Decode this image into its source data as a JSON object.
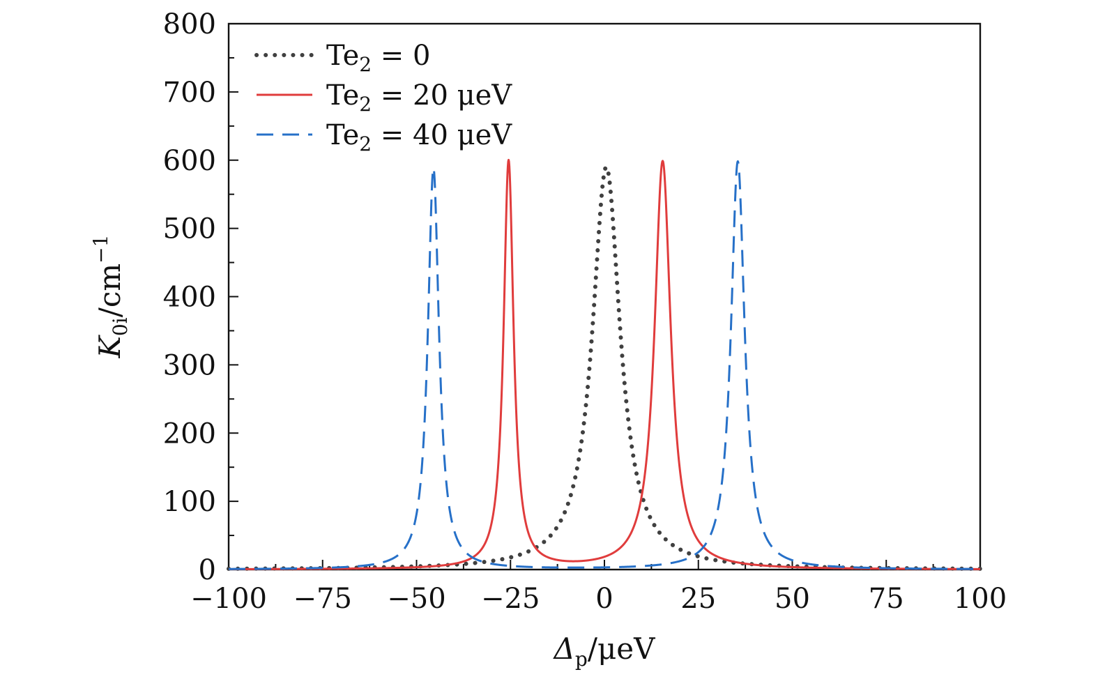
{
  "chart_data": {
    "type": "line",
    "title": "",
    "xlabel": "Δp/μeV",
    "xlabel_parts": {
      "symbol": "Δ",
      "subscript": "p",
      "unit": "/μeV"
    },
    "ylabel": "K0i/cm−1",
    "ylabel_parts": {
      "symbol": "K",
      "subscript": "0i",
      "unit": "/cm",
      "superscript": "−1"
    },
    "xlim": [
      -100,
      100
    ],
    "ylim": [
      0,
      800
    ],
    "x_ticks": [
      -100,
      -75,
      -50,
      -25,
      0,
      25,
      50,
      75,
      100
    ],
    "x_tick_labels": [
      "−100",
      "−75",
      "−50",
      "−25",
      "0",
      "25",
      "50",
      "75",
      "100"
    ],
    "y_ticks": [
      0,
      100,
      200,
      300,
      400,
      500,
      600,
      700,
      800
    ],
    "y_tick_labels": [
      "0",
      "100",
      "200",
      "300",
      "400",
      "500",
      "600",
      "700",
      "800"
    ],
    "grid": false,
    "legend_position": "top-left",
    "series": [
      {
        "name": "Te2 = 0",
        "legend": {
          "base": "Te",
          "sub": "2",
          "rest": " = 0"
        },
        "color": "#404040",
        "style": "dotted",
        "peaks": [
          {
            "center": 0.5,
            "height": 590,
            "hwhm": 4.5
          }
        ]
      },
      {
        "name": "Te2 = 20 μeV",
        "legend": {
          "base": "Te",
          "sub": "2",
          "rest": " = 20 μeV"
        },
        "color": "#e03c3c",
        "style": "solid",
        "peaks": [
          {
            "center": -25.5,
            "height": 598,
            "hwhm": 1.6
          },
          {
            "center": 15.5,
            "height": 598,
            "hwhm": 2.6
          }
        ]
      },
      {
        "name": "Te2 = 40 μeV",
        "legend": {
          "base": "Te",
          "sub": "2",
          "rest": " = 40 μeV"
        },
        "color": "#2670c8",
        "style": "dashed",
        "peaks": [
          {
            "center": -45.5,
            "height": 588,
            "hwhm": 1.8
          },
          {
            "center": 35.5,
            "height": 598,
            "hwhm": 2.2
          }
        ]
      }
    ]
  }
}
